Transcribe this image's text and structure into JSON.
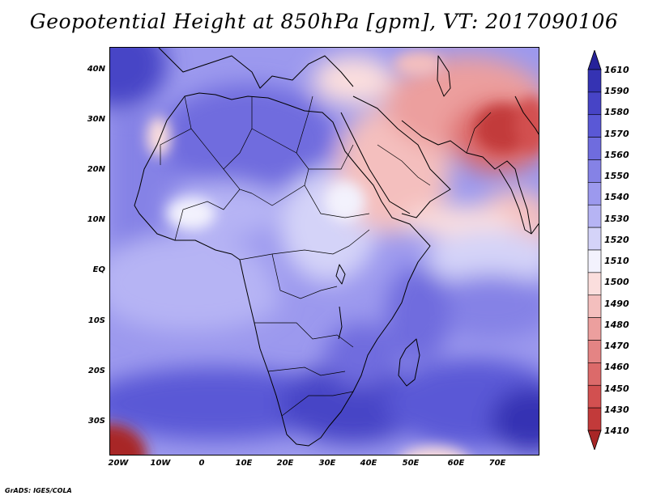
{
  "title": "Geopotential Height at 850hPa [gpm], VT: 2017090106",
  "credit": "GrADS: IGES/COLA",
  "lat_labels": [
    "40N",
    "30N",
    "20N",
    "10N",
    "EQ",
    "10S",
    "20S",
    "30S"
  ],
  "lon_labels": [
    "20W",
    "10W",
    "0",
    "10E",
    "20E",
    "30E",
    "40E",
    "50E",
    "60E",
    "70E"
  ],
  "colorbar": {
    "levels": [
      "1610",
      "1590",
      "1580",
      "1570",
      "1560",
      "1550",
      "1540",
      "1530",
      "1520",
      "1510",
      "1500",
      "1490",
      "1480",
      "1470",
      "1460",
      "1450",
      "1430",
      "1410"
    ],
    "colors": [
      "#26229a",
      "#3533b3",
      "#4744c6",
      "#5a58d6",
      "#6f6cde",
      "#8582e6",
      "#9c99ee",
      "#b6b4f4",
      "#d4d3f8",
      "#f3f2fd",
      "#fbdedd",
      "#f4bfbe",
      "#ec9f9e",
      "#e48484",
      "#dc6a6a",
      "#d25050",
      "#c23a3a",
      "#a82626"
    ]
  }
}
